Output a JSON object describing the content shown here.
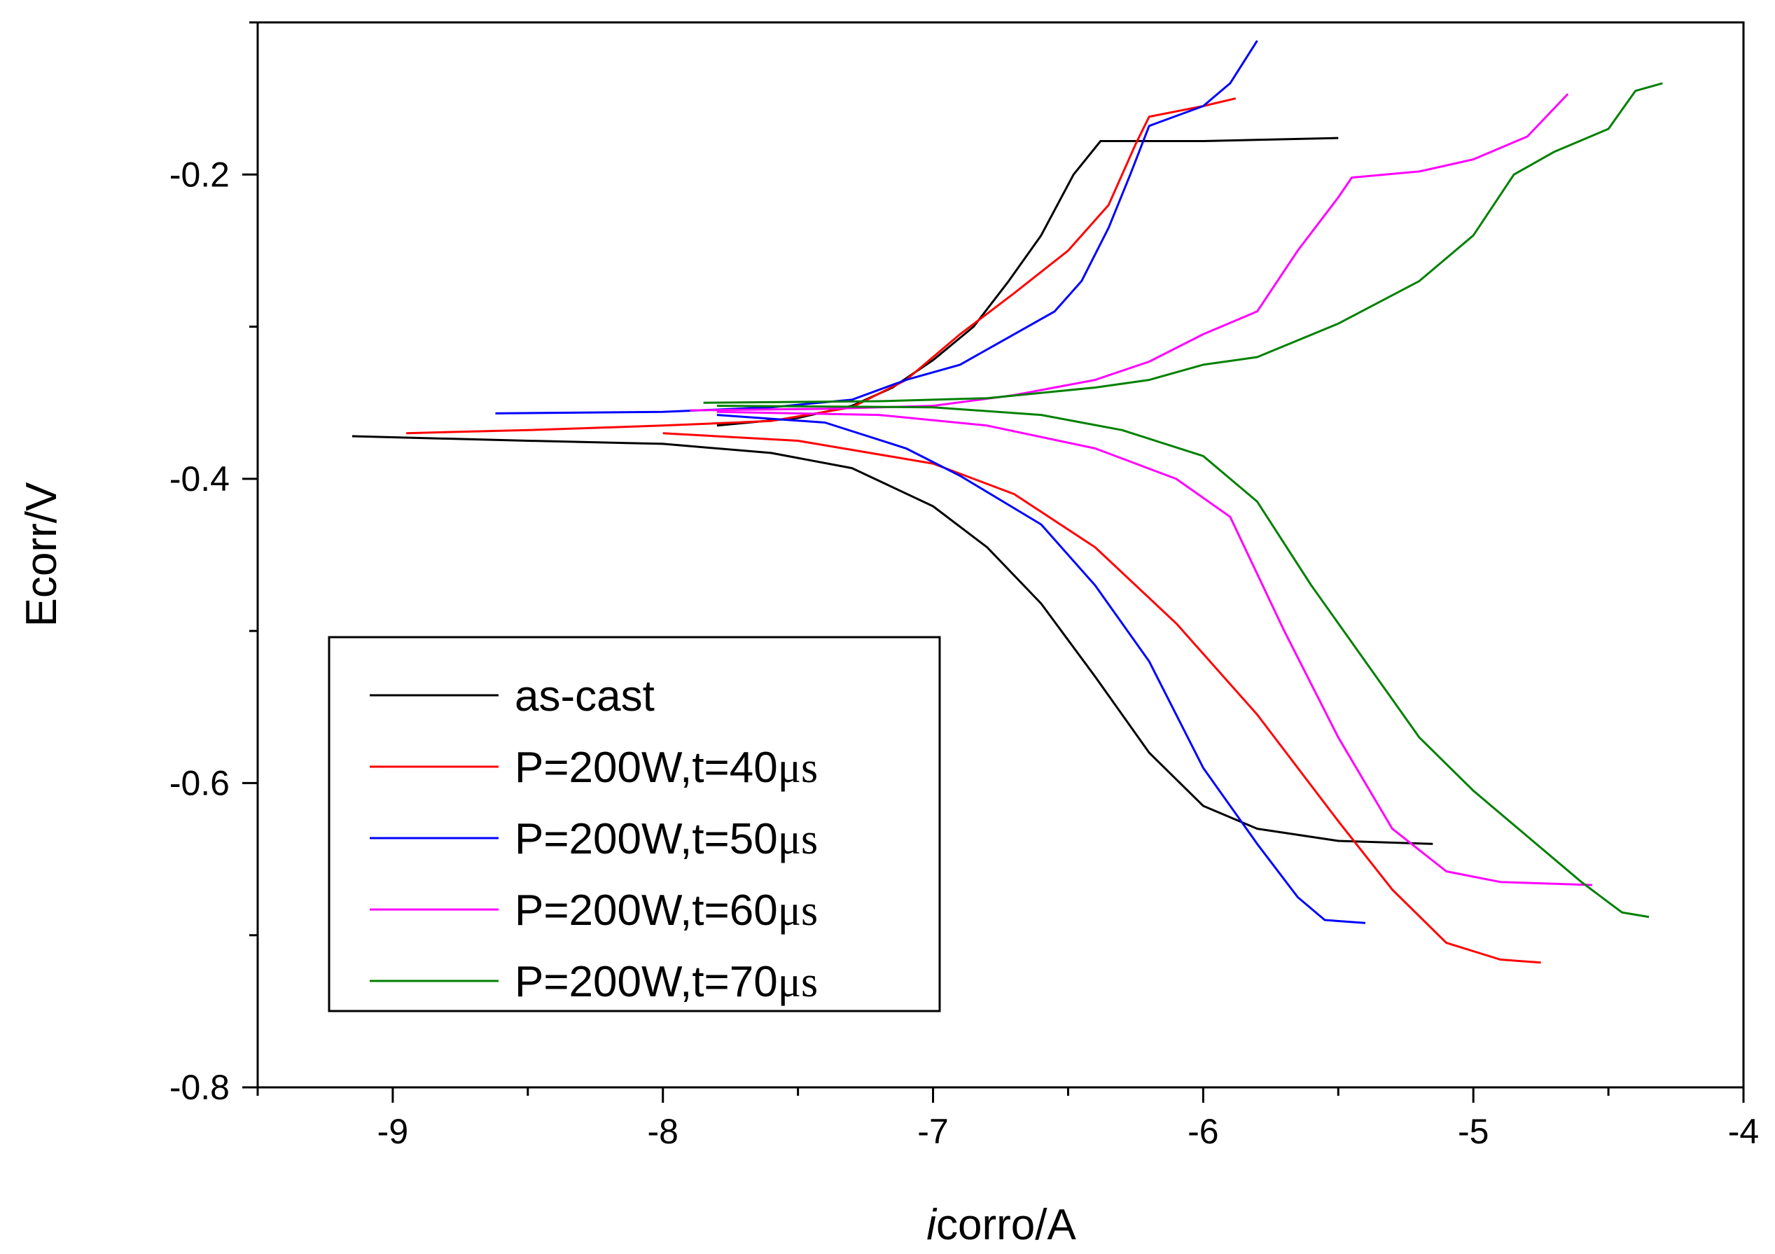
{
  "chart_data": {
    "type": "line",
    "title": "",
    "xlabel_italic": "i",
    "xlabel_rest": "corro/A",
    "ylabel": "Ecorr/V",
    "xlim": [
      -9.5,
      -4
    ],
    "ylim": [
      -0.8,
      -0.1
    ],
    "x_ticks": [
      -9,
      -8,
      -7,
      -6,
      -5,
      -4
    ],
    "x_tick_labels": [
      "-9",
      "-8",
      "-7",
      "-6",
      "-5",
      "-4"
    ],
    "y_ticks": [
      -0.8,
      -0.6,
      -0.4,
      -0.2
    ],
    "y_tick_labels": [
      "-0.8",
      "-0.6",
      "-0.4",
      "-0.2"
    ],
    "x_minor_ticks": [
      -9.5,
      -8.5,
      -7.5,
      -6.5,
      -5.5,
      -4.5
    ],
    "y_minor_ticks": [
      -0.7,
      -0.5,
      -0.3,
      -0.1
    ],
    "grid": false,
    "legend_position": "lower-left",
    "series": [
      {
        "name": "as-cast",
        "legend_main": "as-cast",
        "legend_unit": "",
        "color": "#000000",
        "points": [
          [
            -9.15,
            -0.372
          ],
          [
            -8.5,
            -0.375
          ],
          [
            -8.0,
            -0.377
          ],
          [
            -7.6,
            -0.383
          ],
          [
            -7.3,
            -0.393
          ],
          [
            -7.0,
            -0.418
          ],
          [
            -6.8,
            -0.445
          ],
          [
            -6.6,
            -0.482
          ],
          [
            -6.4,
            -0.53
          ],
          [
            -6.2,
            -0.58
          ],
          [
            -6.0,
            -0.615
          ],
          [
            -5.8,
            -0.63
          ],
          [
            -5.5,
            -0.638
          ],
          [
            -5.15,
            -0.64
          ],
          null,
          [
            -7.8,
            -0.365
          ],
          [
            -7.5,
            -0.36
          ],
          [
            -7.3,
            -0.352
          ],
          [
            -7.15,
            -0.34
          ],
          [
            -7.0,
            -0.322
          ],
          [
            -6.85,
            -0.3
          ],
          [
            -6.72,
            -0.27
          ],
          [
            -6.6,
            -0.24
          ],
          [
            -6.48,
            -0.2
          ],
          [
            -6.38,
            -0.178
          ],
          [
            -6.0,
            -0.178
          ],
          [
            -5.5,
            -0.176
          ]
        ]
      },
      {
        "name": "P=200W,t=40μs",
        "legend_main": "P=200W,t=40",
        "legend_unit": "μs",
        "color": "#ff0000",
        "points": [
          [
            -8.95,
            -0.37
          ],
          [
            -8.5,
            -0.368
          ],
          [
            -8.0,
            -0.365
          ],
          [
            -7.6,
            -0.362
          ],
          [
            -7.3,
            -0.353
          ],
          [
            -7.1,
            -0.335
          ],
          [
            -6.9,
            -0.305
          ],
          [
            -6.7,
            -0.278
          ],
          [
            -6.5,
            -0.25
          ],
          [
            -6.35,
            -0.22
          ],
          [
            -6.25,
            -0.18
          ],
          [
            -6.2,
            -0.162
          ],
          [
            -6.0,
            -0.155
          ],
          [
            -5.88,
            -0.15
          ],
          null,
          [
            -8.0,
            -0.37
          ],
          [
            -7.5,
            -0.375
          ],
          [
            -7.0,
            -0.39
          ],
          [
            -6.7,
            -0.41
          ],
          [
            -6.4,
            -0.445
          ],
          [
            -6.1,
            -0.495
          ],
          [
            -5.8,
            -0.555
          ],
          [
            -5.5,
            -0.625
          ],
          [
            -5.3,
            -0.67
          ],
          [
            -5.1,
            -0.705
          ],
          [
            -4.9,
            -0.716
          ],
          [
            -4.75,
            -0.718
          ]
        ]
      },
      {
        "name": "P=200W,t=50μs",
        "legend_main": "P=200W,t=50",
        "legend_unit": "μs",
        "color": "#0000ff",
        "points": [
          [
            -8.62,
            -0.357
          ],
          [
            -8.0,
            -0.356
          ],
          [
            -7.6,
            -0.353
          ],
          [
            -7.3,
            -0.348
          ],
          [
            -7.1,
            -0.335
          ],
          [
            -6.9,
            -0.325
          ],
          [
            -6.75,
            -0.31
          ],
          [
            -6.55,
            -0.29
          ],
          [
            -6.45,
            -0.27
          ],
          [
            -6.35,
            -0.235
          ],
          [
            -6.27,
            -0.2
          ],
          [
            -6.2,
            -0.168
          ],
          [
            -6.0,
            -0.155
          ],
          [
            -5.9,
            -0.14
          ],
          [
            -5.8,
            -0.112
          ],
          null,
          [
            -7.8,
            -0.358
          ],
          [
            -7.4,
            -0.363
          ],
          [
            -7.1,
            -0.38
          ],
          [
            -6.9,
            -0.398
          ],
          [
            -6.6,
            -0.43
          ],
          [
            -6.4,
            -0.47
          ],
          [
            -6.2,
            -0.52
          ],
          [
            -6.0,
            -0.59
          ],
          [
            -5.8,
            -0.64
          ],
          [
            -5.65,
            -0.675
          ],
          [
            -5.55,
            -0.69
          ],
          [
            -5.4,
            -0.692
          ]
        ]
      },
      {
        "name": "P=200W,t=60μs",
        "legend_main": "P=200W,t=60",
        "legend_unit": "μs",
        "color": "#ff00ff",
        "points": [
          [
            -7.9,
            -0.355
          ],
          [
            -7.4,
            -0.354
          ],
          [
            -7.0,
            -0.352
          ],
          [
            -6.7,
            -0.345
          ],
          [
            -6.4,
            -0.335
          ],
          [
            -6.2,
            -0.323
          ],
          [
            -6.0,
            -0.305
          ],
          [
            -5.8,
            -0.29
          ],
          [
            -5.65,
            -0.25
          ],
          [
            -5.5,
            -0.215
          ],
          [
            -5.45,
            -0.202
          ],
          [
            -5.2,
            -0.198
          ],
          [
            -5.0,
            -0.19
          ],
          [
            -4.8,
            -0.175
          ],
          [
            -4.65,
            -0.147
          ],
          null,
          [
            -7.8,
            -0.356
          ],
          [
            -7.2,
            -0.358
          ],
          [
            -6.8,
            -0.365
          ],
          [
            -6.4,
            -0.38
          ],
          [
            -6.1,
            -0.4
          ],
          [
            -5.9,
            -0.425
          ],
          [
            -5.7,
            -0.5
          ],
          [
            -5.5,
            -0.57
          ],
          [
            -5.3,
            -0.63
          ],
          [
            -5.1,
            -0.658
          ],
          [
            -4.9,
            -0.665
          ],
          [
            -4.56,
            -0.667
          ]
        ]
      },
      {
        "name": "P=200W,t=70μs",
        "legend_main": "P=200W,t=70",
        "legend_unit": "μs",
        "color": "#008000",
        "points": [
          [
            -7.85,
            -0.35
          ],
          [
            -7.2,
            -0.349
          ],
          [
            -6.8,
            -0.347
          ],
          [
            -6.4,
            -0.34
          ],
          [
            -6.2,
            -0.335
          ],
          [
            -6.0,
            -0.325
          ],
          [
            -5.8,
            -0.32
          ],
          [
            -5.5,
            -0.298
          ],
          [
            -5.2,
            -0.27
          ],
          [
            -5.0,
            -0.24
          ],
          [
            -4.85,
            -0.2
          ],
          [
            -4.7,
            -0.185
          ],
          [
            -4.5,
            -0.17
          ],
          [
            -4.4,
            -0.145
          ],
          [
            -4.3,
            -0.14
          ],
          null,
          [
            -7.8,
            -0.352
          ],
          [
            -7.0,
            -0.353
          ],
          [
            -6.6,
            -0.358
          ],
          [
            -6.3,
            -0.368
          ],
          [
            -6.0,
            -0.385
          ],
          [
            -5.8,
            -0.415
          ],
          [
            -5.6,
            -0.47
          ],
          [
            -5.4,
            -0.52
          ],
          [
            -5.2,
            -0.57
          ],
          [
            -5.0,
            -0.605
          ],
          [
            -4.8,
            -0.635
          ],
          [
            -4.6,
            -0.665
          ],
          [
            -4.45,
            -0.685
          ],
          [
            -4.35,
            -0.688
          ]
        ]
      }
    ]
  }
}
